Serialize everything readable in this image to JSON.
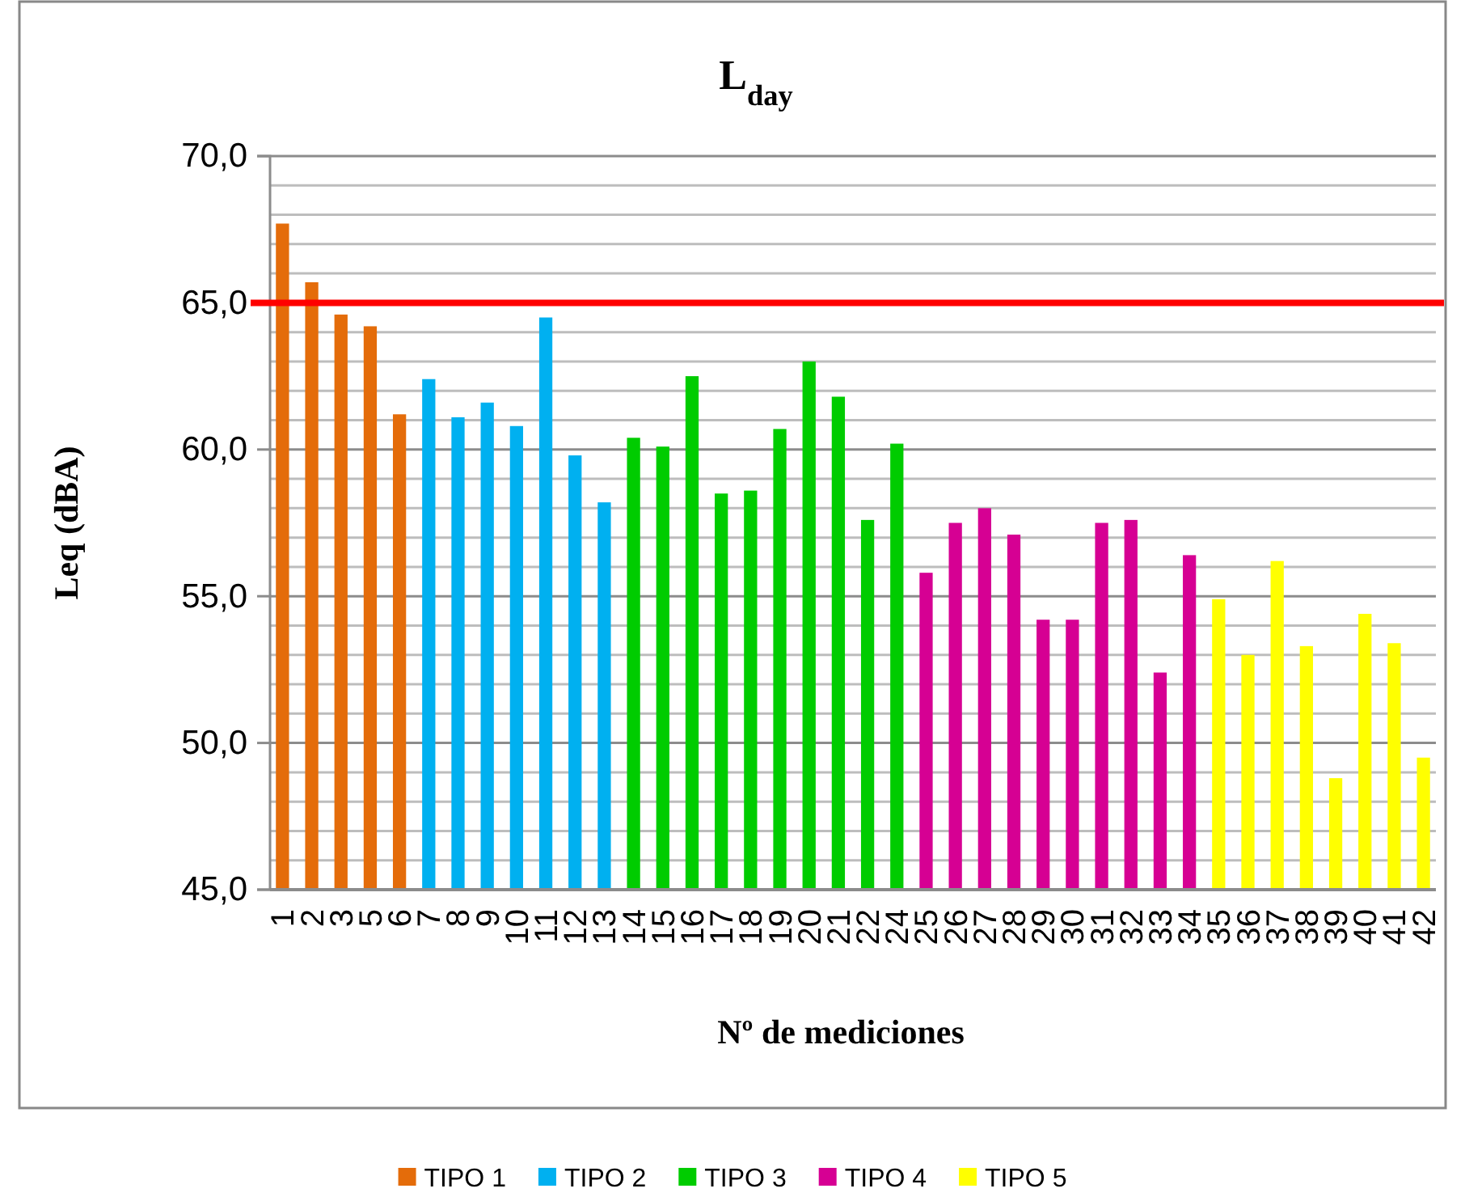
{
  "chart_data": {
    "type": "bar",
    "title": "L$_{day}$",
    "xlabel": "Nº de mediciones",
    "ylabel": "Leq (dBA)",
    "categories": [
      "1",
      "2",
      "3",
      "5",
      "6",
      "7",
      "8",
      "9",
      "10",
      "11",
      "12",
      "13",
      "14",
      "15",
      "16",
      "17",
      "18",
      "19",
      "20",
      "21",
      "22",
      "24",
      "25",
      "26",
      "27",
      "28",
      "29",
      "30",
      "31",
      "32",
      "33",
      "34",
      "35",
      "36",
      "37",
      "38",
      "39",
      "40",
      "41",
      "42"
    ],
    "series": [
      {
        "name": "TIPO 1",
        "color": "#e46c0a",
        "values": [
          67.7,
          65.7,
          64.6,
          64.2,
          61.2,
          null,
          null,
          null,
          null,
          null,
          null,
          null,
          null,
          null,
          null,
          null,
          null,
          null,
          null,
          null,
          null,
          null,
          null,
          null,
          null,
          null,
          null,
          null,
          null,
          null,
          null,
          null,
          null,
          null,
          null,
          null,
          null,
          null,
          null,
          null
        ]
      },
      {
        "name": "TIPO 2",
        "color": "#00b0f0",
        "values": [
          null,
          null,
          null,
          null,
          null,
          62.4,
          61.1,
          61.6,
          60.8,
          64.5,
          59.8,
          58.2,
          null,
          null,
          null,
          null,
          null,
          null,
          null,
          null,
          null,
          null,
          null,
          null,
          null,
          null,
          null,
          null,
          null,
          null,
          null,
          null,
          null,
          null,
          null,
          null,
          null,
          null,
          null,
          null
        ]
      },
      {
        "name": "TIPO 3",
        "color": "#00cc00",
        "values": [
          null,
          null,
          null,
          null,
          null,
          null,
          null,
          null,
          null,
          null,
          null,
          null,
          60.4,
          60.1,
          62.5,
          58.5,
          58.6,
          60.7,
          63.0,
          61.8,
          57.6,
          60.2,
          null,
          null,
          null,
          null,
          null,
          null,
          null,
          null,
          null,
          null,
          null,
          null,
          null,
          null,
          null,
          null,
          null,
          null
        ]
      },
      {
        "name": "TIPO 4",
        "color": "#d60093",
        "values": [
          null,
          null,
          null,
          null,
          null,
          null,
          null,
          null,
          null,
          null,
          null,
          null,
          null,
          null,
          null,
          null,
          null,
          null,
          null,
          null,
          null,
          null,
          55.8,
          57.5,
          58.0,
          57.1,
          54.2,
          54.2,
          57.5,
          57.6,
          52.4,
          56.4,
          null,
          null,
          null,
          null,
          null,
          null,
          null,
          null
        ]
      },
      {
        "name": "TIPO 5",
        "color": "#ffff00",
        "values": [
          null,
          null,
          null,
          null,
          null,
          null,
          null,
          null,
          null,
          null,
          null,
          null,
          null,
          null,
          null,
          null,
          null,
          null,
          null,
          null,
          null,
          null,
          null,
          null,
          null,
          null,
          null,
          null,
          null,
          null,
          null,
          null,
          54.9,
          53.0,
          56.2,
          53.3,
          48.8,
          54.4,
          53.4,
          49.5
        ]
      }
    ],
    "ylim": [
      45,
      70
    ],
    "yticks": [
      {
        "value": 45,
        "label": "45,0"
      },
      {
        "value": 46,
        "label": null
      },
      {
        "value": 47,
        "label": null
      },
      {
        "value": 48,
        "label": null
      },
      {
        "value": 49,
        "label": null
      },
      {
        "value": 50,
        "label": "50,0"
      },
      {
        "value": 51,
        "label": null
      },
      {
        "value": 52,
        "label": null
      },
      {
        "value": 53,
        "label": null
      },
      {
        "value": 54,
        "label": null
      },
      {
        "value": 55,
        "label": "55,0"
      },
      {
        "value": 56,
        "label": null
      },
      {
        "value": 57,
        "label": null
      },
      {
        "value": 58,
        "label": null
      },
      {
        "value": 59,
        "label": null
      },
      {
        "value": 60,
        "label": "60,0"
      },
      {
        "value": 61,
        "label": null
      },
      {
        "value": 62,
        "label": null
      },
      {
        "value": 63,
        "label": null
      },
      {
        "value": 64,
        "label": null
      },
      {
        "value": 65,
        "label": "65,0"
      },
      {
        "value": 66,
        "label": null
      },
      {
        "value": 67,
        "label": null
      },
      {
        "value": 68,
        "label": null
      },
      {
        "value": 69,
        "label": null
      },
      {
        "value": 70,
        "label": "70,0"
      }
    ],
    "grid": "y",
    "ref_lines": [
      {
        "axis": "y",
        "value": 65,
        "color": "#ff0000"
      }
    ],
    "legend": "bottom"
  }
}
